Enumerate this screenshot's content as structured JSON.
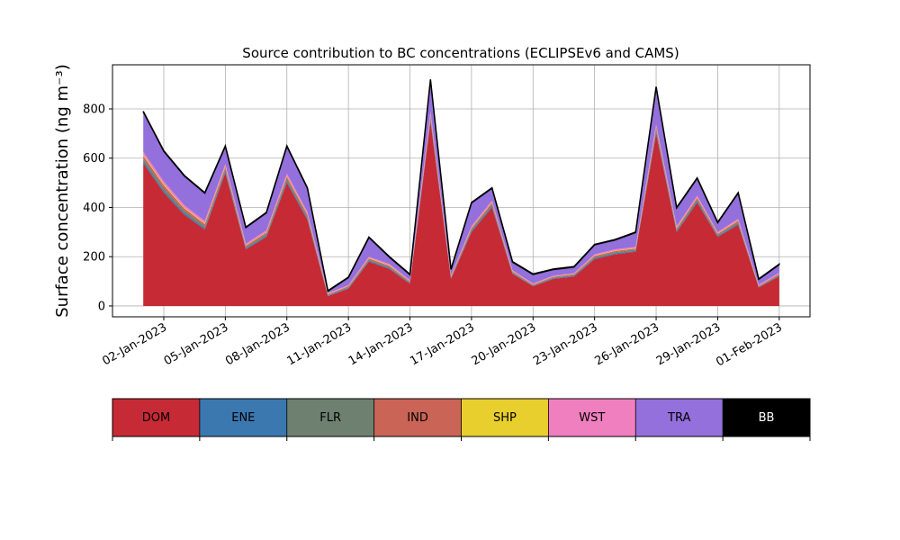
{
  "chart_data": {
    "type": "stacked_area",
    "title": "Source contribution to BC concentrations (ECLIPSEv6 and CAMS)",
    "y_label": "Surface concentration (ng m⁻³)",
    "x": [
      "2023-01-01",
      "2023-01-02",
      "2023-01-03",
      "2023-01-04",
      "2023-01-05",
      "2023-01-06",
      "2023-01-07",
      "2023-01-08",
      "2023-01-09",
      "2023-01-10",
      "2023-01-11",
      "2023-01-12",
      "2023-01-13",
      "2023-01-14",
      "2023-01-15",
      "2023-01-16",
      "2023-01-17",
      "2023-01-18",
      "2023-01-19",
      "2023-01-20",
      "2023-01-21",
      "2023-01-22",
      "2023-01-23",
      "2023-01-24",
      "2023-01-25",
      "2023-01-26",
      "2023-01-27",
      "2023-01-28",
      "2023-01-29",
      "2023-01-30",
      "2023-01-31",
      "2023-02-01"
    ],
    "series": [
      {
        "name": "DOM",
        "color": "#c62a35",
        "values": [
          580,
          460,
          370,
          310,
          540,
          230,
          280,
          500,
          350,
          40,
          70,
          180,
          150,
          90,
          750,
          110,
          300,
          400,
          130,
          80,
          110,
          120,
          190,
          210,
          220,
          700,
          300,
          420,
          280,
          330,
          75,
          120
        ]
      },
      {
        "name": "ENE",
        "color": "#3b78b0",
        "values": [
          8,
          8,
          7,
          6,
          7,
          4,
          5,
          7,
          6,
          2,
          3,
          4,
          4,
          3,
          8,
          3,
          5,
          6,
          3,
          2,
          3,
          3,
          4,
          4,
          4,
          8,
          5,
          6,
          4,
          5,
          2,
          3
        ]
      },
      {
        "name": "FLR",
        "color": "#6e8070",
        "values": [
          10,
          10,
          9,
          8,
          8,
          5,
          6,
          8,
          7,
          3,
          3,
          4,
          4,
          3,
          8,
          3,
          5,
          6,
          3,
          2,
          3,
          3,
          4,
          4,
          4,
          8,
          5,
          6,
          4,
          5,
          2,
          3
        ]
      },
      {
        "name": "IND",
        "color": "#c96456",
        "values": [
          12,
          12,
          10,
          9,
          9,
          6,
          7,
          10,
          8,
          3,
          4,
          5,
          5,
          4,
          10,
          4,
          6,
          7,
          4,
          3,
          3,
          3,
          5,
          5,
          5,
          10,
          6,
          7,
          5,
          6,
          3,
          4
        ]
      },
      {
        "name": "SHP",
        "color": "#e8cf2e",
        "values": [
          4,
          4,
          3,
          3,
          3,
          2,
          2,
          3,
          3,
          1,
          1,
          2,
          2,
          1,
          3,
          1,
          2,
          2,
          1,
          1,
          1,
          1,
          2,
          2,
          2,
          3,
          2,
          2,
          2,
          2,
          1,
          1
        ]
      },
      {
        "name": "WST",
        "color": "#f07fbf",
        "values": [
          12,
          12,
          10,
          9,
          10,
          6,
          7,
          10,
          8,
          3,
          4,
          5,
          5,
          4,
          10,
          4,
          6,
          7,
          4,
          3,
          3,
          3,
          5,
          5,
          5,
          10,
          6,
          7,
          5,
          6,
          3,
          4
        ]
      },
      {
        "name": "TRA",
        "color": "#9370db",
        "values": [
          162,
          122,
          119,
          113,
          71,
          65,
          71,
          110,
          96,
          8,
          30,
          78,
          28,
          22,
          129,
          23,
          94,
          50,
          33,
          37,
          25,
          25,
          38,
          38,
          58,
          149,
          74,
          70,
          38,
          104,
          22,
          33
        ]
      },
      {
        "name": "BB",
        "color": "#000000",
        "values": [
          2,
          2,
          2,
          2,
          2,
          2,
          2,
          2,
          2,
          2,
          2,
          2,
          2,
          2,
          2,
          2,
          2,
          2,
          2,
          2,
          2,
          2,
          2,
          2,
          2,
          2,
          2,
          2,
          2,
          2,
          2,
          2
        ]
      }
    ],
    "xlim": [
      "2022-12-30T12:00",
      "2023-02-02T12:00"
    ],
    "xticks": [
      {
        "value": "2023-01-02",
        "label": "02-Jan-2023"
      },
      {
        "value": "2023-01-05",
        "label": "05-Jan-2023"
      },
      {
        "value": "2023-01-08",
        "label": "08-Jan-2023"
      },
      {
        "value": "2023-01-11",
        "label": "11-Jan-2023"
      },
      {
        "value": "2023-01-14",
        "label": "14-Jan-2023"
      },
      {
        "value": "2023-01-17",
        "label": "17-Jan-2023"
      },
      {
        "value": "2023-01-20",
        "label": "20-Jan-2023"
      },
      {
        "value": "2023-01-23",
        "label": "23-Jan-2023"
      },
      {
        "value": "2023-01-26",
        "label": "26-Jan-2023"
      },
      {
        "value": "2023-01-29",
        "label": "29-Jan-2023"
      },
      {
        "value": "2023-02-01",
        "label": "01-Feb-2023"
      }
    ],
    "ylim": [
      -44,
      979
    ],
    "yticks": [
      0,
      200,
      400,
      600,
      800
    ],
    "grid": true
  }
}
